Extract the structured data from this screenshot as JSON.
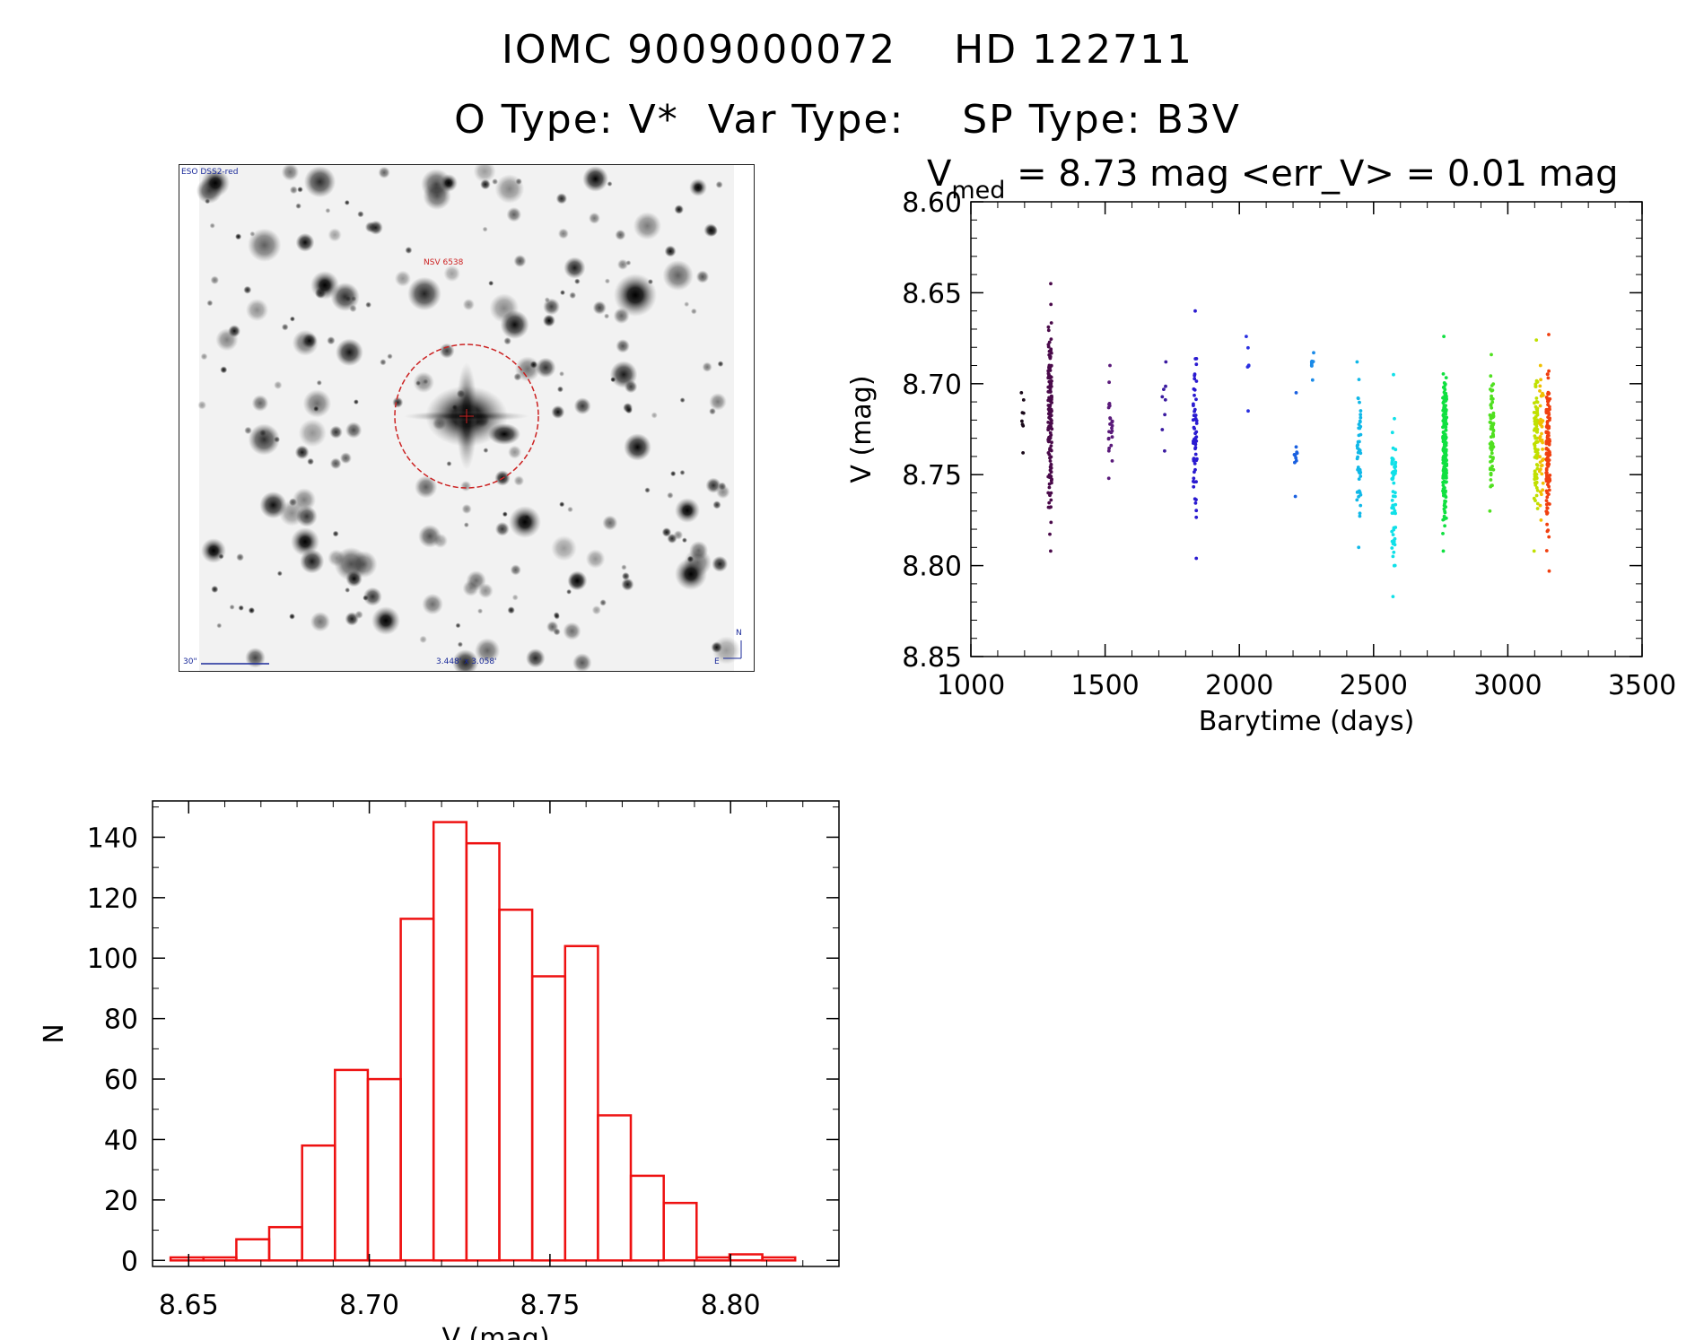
{
  "header": {
    "line1": "IOMC 9009000072    HD 122711",
    "line2": "O Type: V*  Var Type:    SP Type: B3V"
  },
  "finder": {
    "survey_label": "ESO DSS2-red",
    "object_label": "NSV 6538",
    "scale_label": "30\"",
    "fov_label": "3.448' x 3.058'",
    "north_label": "N",
    "east_label": "E",
    "colors": {
      "circle": "#cc2222",
      "label_red": "#cc2222",
      "label_blue": "#1a2a9a"
    }
  },
  "lightcurve": {
    "title_prefix": "V",
    "title_sub": "med",
    "title_rest": " = 8.73 mag <err_V> = 0.01 mag"
  },
  "chart_data": [
    {
      "type": "scatter",
      "xlabel": "Barytime (days)",
      "ylabel": "V (mag)",
      "xlim": [
        1000,
        3500
      ],
      "ylim": [
        8.85,
        8.6
      ],
      "y_inverted": true,
      "x_ticks": [
        "1000",
        "1500",
        "2000",
        "2500",
        "3000",
        "3500"
      ],
      "y_ticks": [
        "8.60",
        "8.65",
        "8.70",
        "8.75",
        "8.80",
        "8.85"
      ],
      "series": [
        {
          "color": "#1a0a1a",
          "x": 1190,
          "y_range": [
            8.705,
            8.738
          ],
          "n": 8
        },
        {
          "color": "#4a0a4a",
          "x": 1295,
          "y_range": [
            8.645,
            8.792
          ],
          "n": 150
        },
        {
          "color": "#5a1a7a",
          "x": 1520,
          "y_range": [
            8.69,
            8.752
          ],
          "n": 25
        },
        {
          "color": "#3a1aa0",
          "x": 1720,
          "y_range": [
            8.688,
            8.737
          ],
          "n": 8
        },
        {
          "color": "#2a1ad0",
          "x": 1835,
          "y_range": [
            8.66,
            8.796
          ],
          "n": 60
        },
        {
          "color": "#2a30e0",
          "x": 2030,
          "y_range": [
            8.674,
            8.715
          ],
          "n": 6
        },
        {
          "color": "#1a60e0",
          "x": 2210,
          "y_range": [
            8.705,
            8.762
          ],
          "n": 10
        },
        {
          "color": "#1a8ae8",
          "x": 2275,
          "y_range": [
            8.683,
            8.698
          ],
          "n": 8
        },
        {
          "color": "#10b8e8",
          "x": 2445,
          "y_range": [
            8.688,
            8.79
          ],
          "n": 50
        },
        {
          "color": "#10e0e8",
          "x": 2575,
          "y_range": [
            8.695,
            8.817
          ],
          "n": 60
        },
        {
          "color": "#10e040",
          "x": 2765,
          "y_range": [
            8.674,
            8.792
          ],
          "n": 180
        },
        {
          "color": "#50e020",
          "x": 2940,
          "y_range": [
            8.684,
            8.77
          ],
          "n": 70
        },
        {
          "color": "#c0e000",
          "x": 3105,
          "y_range": [
            8.676,
            8.792
          ],
          "n": 90
        },
        {
          "color": "#f0c000",
          "x": 3125,
          "y_range": [
            8.69,
            8.775
          ],
          "n": 40
        },
        {
          "color": "#f04010",
          "x": 3150,
          "y_range": [
            8.673,
            8.803
          ],
          "n": 130
        }
      ]
    },
    {
      "type": "bar",
      "histogram": true,
      "xlabel": "V (mag)",
      "ylabel": "N",
      "xlim": [
        8.64,
        8.83
      ],
      "ylim": [
        -2,
        152
      ],
      "x_ticks": [
        "8.65",
        "8.70",
        "8.75",
        "8.80"
      ],
      "y_ticks": [
        "0",
        "20",
        "40",
        "60",
        "80",
        "100",
        "120",
        "140"
      ],
      "bin_start": 8.645,
      "bin_width": 0.0091,
      "values": [
        1,
        1,
        7,
        11,
        38,
        63,
        60,
        113,
        145,
        138,
        116,
        94,
        104,
        48,
        28,
        19,
        1,
        2,
        1
      ],
      "color": "#ee1111"
    }
  ]
}
